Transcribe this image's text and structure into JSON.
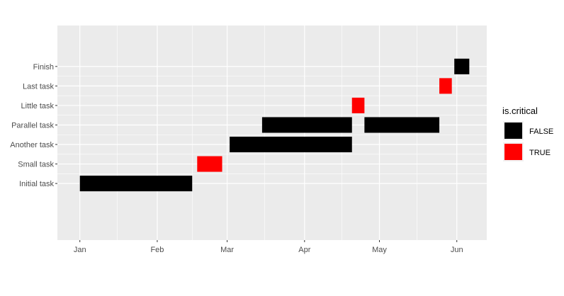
{
  "chart_data": {
    "type": "gantt",
    "title": "",
    "xlabel": "",
    "ylabel": "",
    "x_axis": {
      "type": "date",
      "range": [
        "2017-12-23",
        "2018-06-13"
      ],
      "ticks": [
        {
          "date": "2018-01-01",
          "label": "Jan"
        },
        {
          "date": "2018-02-01",
          "label": "Feb"
        },
        {
          "date": "2018-03-01",
          "label": "Mar"
        },
        {
          "date": "2018-04-01",
          "label": "Apr"
        },
        {
          "date": "2018-05-01",
          "label": "May"
        },
        {
          "date": "2018-06-01",
          "label": "Jun"
        }
      ],
      "minor_ticks": [
        "2018-01-16",
        "2018-02-15",
        "2018-03-16",
        "2018-04-16",
        "2018-05-16"
      ]
    },
    "categories": [
      "Initial task",
      "Small task",
      "Another task",
      "Parallel task",
      "Little task",
      "Last task",
      "Finish"
    ],
    "y_range": [
      -1.9,
      9.1
    ],
    "tasks": [
      {
        "task": "Initial task",
        "start": "2018-01-01",
        "end": "2018-02-15",
        "critical": "FALSE"
      },
      {
        "task": "Small task",
        "start": "2018-02-17",
        "end": "2018-02-27",
        "critical": "TRUE"
      },
      {
        "task": "Another task",
        "start": "2018-03-02",
        "end": "2018-04-20",
        "critical": "FALSE"
      },
      {
        "task": "Parallel task",
        "start": "2018-03-15",
        "end": "2018-04-20",
        "critical": "FALSE"
      },
      {
        "task": "Little task",
        "start": "2018-04-20",
        "end": "2018-04-25",
        "critical": "TRUE"
      },
      {
        "task": "Parallel task",
        "start": "2018-04-25",
        "end": "2018-05-25",
        "critical": "FALSE"
      },
      {
        "task": "Last task",
        "start": "2018-05-25",
        "end": "2018-05-30",
        "critical": "TRUE"
      },
      {
        "task": "Finish",
        "start": "2018-05-31",
        "end": "2018-06-06",
        "critical": "FALSE"
      }
    ],
    "legend": {
      "title": "is.critical",
      "position": "right",
      "entries": [
        {
          "label": "FALSE",
          "color": "#000000"
        },
        {
          "label": "TRUE",
          "color": "#ff0000"
        }
      ]
    },
    "colors": {
      "panel_background": "#ebebeb",
      "grid": "#ffffff",
      "FALSE": "#000000",
      "TRUE": "#ff0000"
    },
    "grid": true
  }
}
